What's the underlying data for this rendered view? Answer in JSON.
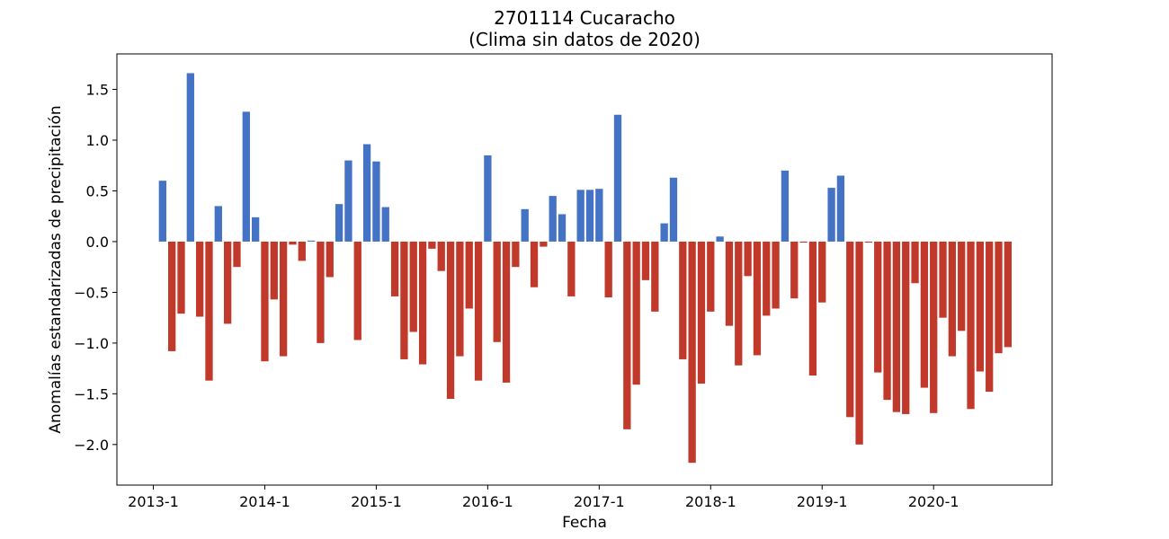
{
  "chart_data": {
    "type": "bar",
    "title_line1": "2701114 Cucaracho",
    "title_line2": "(Clima sin datos de 2020)",
    "xlabel": "Fecha",
    "ylabel": "Anomalías estandarizadas de precipitación",
    "ylim": [
      -2.4,
      1.85
    ],
    "yticks": [
      -2.0,
      -1.5,
      -1.0,
      -0.5,
      0.0,
      0.5,
      1.0,
      1.5
    ],
    "ytick_labels": [
      "−2.0",
      "−1.5",
      "−1.0",
      "−0.5",
      "0.0",
      "0.5",
      "1.0",
      "1.5"
    ],
    "xticks": [
      {
        "month_index": 0,
        "label": "2013-1"
      },
      {
        "month_index": 12,
        "label": "2014-1"
      },
      {
        "month_index": 24,
        "label": "2015-1"
      },
      {
        "month_index": 36,
        "label": "2016-1"
      },
      {
        "month_index": 48,
        "label": "2017-1"
      },
      {
        "month_index": 60,
        "label": "2018-1"
      },
      {
        "month_index": 72,
        "label": "2019-1"
      },
      {
        "month_index": 84,
        "label": "2020-1"
      }
    ],
    "grid": false,
    "colors": {
      "positive": "#4472c4",
      "negative": "#c0392b"
    },
    "series": [
      {
        "start": "2013-2",
        "values": [
          0.6,
          -1.08,
          -0.71,
          1.66,
          -0.74,
          -1.37,
          0.35,
          -0.81,
          -0.25,
          1.28,
          0.24,
          -1.18,
          -0.57,
          -1.13,
          -0.03,
          -0.19,
          0.01,
          -1.0,
          -0.35,
          0.37,
          0.8,
          -0.97,
          0.96,
          0.79,
          0.34,
          -0.54,
          -1.16,
          -0.89,
          -1.21,
          -0.07,
          -0.29,
          -1.55,
          -1.13,
          -0.66,
          -1.37,
          0.85,
          -0.99,
          -1.39,
          -0.25,
          0.32,
          -0.45,
          -0.05,
          0.45,
          0.27,
          -0.54,
          0.51,
          0.51,
          0.52,
          -0.55,
          1.25,
          -1.85,
          -1.41,
          -0.38,
          -0.69,
          0.18,
          0.63,
          -1.16,
          -2.18,
          -1.4,
          -0.69,
          0.05,
          -0.83,
          -1.22,
          -0.34,
          -1.12,
          -0.73,
          -0.66,
          0.7,
          -0.56,
          -0.01,
          -1.32,
          -0.6,
          0.53,
          0.65,
          -1.73,
          -2.0,
          -0.01,
          -1.29,
          -1.56,
          -1.68,
          -1.7,
          -0.41,
          -1.44,
          -1.69,
          -0.75,
          -1.13,
          -0.88,
          -1.65,
          -1.28,
          -1.48,
          -1.1,
          -1.04
        ]
      }
    ]
  }
}
